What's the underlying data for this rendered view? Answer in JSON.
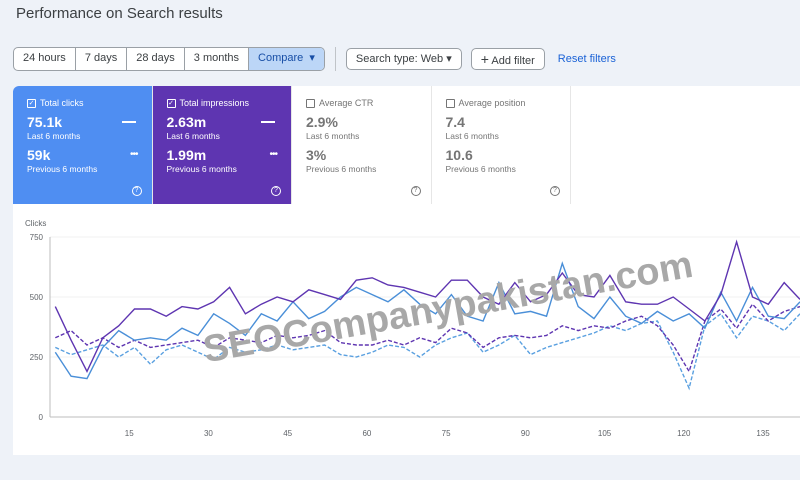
{
  "title": "Performance on Search results",
  "ranges": [
    "24 hours",
    "7 days",
    "28 days",
    "3 months",
    "Compare"
  ],
  "search_type": "Search type: Web",
  "add_filter": "Add filter",
  "reset": "Reset filters",
  "cards": [
    {
      "label": "Total clicks",
      "value": "75.1k",
      "period": "Last 6 months",
      "prev": "59k",
      "prev_period": "Previous 6 months",
      "checked": true
    },
    {
      "label": "Total impressions",
      "value": "2.63m",
      "period": "Last 6 months",
      "prev": "1.99m",
      "prev_period": "Previous 6 months",
      "checked": true
    },
    {
      "label": "Average CTR",
      "value": "2.9%",
      "period": "Last 6 months",
      "prev": "3%",
      "prev_period": "Previous 6 months",
      "checked": false
    },
    {
      "label": "Average position",
      "value": "7.4",
      "period": "Last 6 months",
      "prev": "10.6",
      "prev_period": "Previous 6 months",
      "checked": false
    }
  ],
  "watermark": "SEOCompanypakistan.com",
  "chart_data": {
    "type": "line",
    "ylabel": "Clicks",
    "ylim": [
      0,
      750
    ],
    "yticks": [
      0,
      250,
      500,
      750
    ],
    "xticks": [
      15,
      30,
      45,
      60,
      75,
      90,
      105,
      120,
      135
    ],
    "xlim": [
      0,
      142
    ],
    "x": [
      1,
      4,
      7,
      10,
      13,
      16,
      19,
      22,
      25,
      28,
      31,
      34,
      37,
      40,
      43,
      46,
      49,
      52,
      55,
      58,
      61,
      64,
      67,
      70,
      73,
      76,
      79,
      82,
      85,
      88,
      91,
      94,
      97,
      100,
      103,
      106,
      109,
      112,
      115,
      118,
      121,
      124,
      127,
      130,
      133,
      136,
      139,
      142
    ],
    "series": [
      {
        "name": "Total impressions (last 6 months)",
        "color": "#5e35b1",
        "dash": false,
        "values": [
          460,
          320,
          190,
          330,
          380,
          450,
          450,
          420,
          460,
          450,
          480,
          540,
          430,
          470,
          500,
          480,
          530,
          510,
          490,
          570,
          580,
          550,
          540,
          520,
          500,
          570,
          570,
          500,
          470,
          560,
          480,
          510,
          600,
          510,
          500,
          590,
          480,
          470,
          470,
          500,
          450,
          400,
          510,
          730,
          500,
          470,
          560,
          490
        ]
      },
      {
        "name": "Total clicks (last 6 months)",
        "color": "#4a8fd8",
        "dash": false,
        "values": [
          270,
          170,
          160,
          290,
          360,
          320,
          330,
          320,
          370,
          340,
          430,
          390,
          340,
          430,
          400,
          480,
          410,
          440,
          500,
          540,
          510,
          480,
          530,
          470,
          430,
          510,
          420,
          400,
          560,
          430,
          440,
          420,
          640,
          460,
          410,
          500,
          420,
          390,
          440,
          400,
          430,
          370,
          520,
          400,
          540,
          420,
          410,
          480
        ]
      },
      {
        "name": "Total impressions (previous 6 months)",
        "color": "#5e35b1",
        "dash": true,
        "values": [
          330,
          360,
          300,
          330,
          290,
          320,
          290,
          300,
          310,
          320,
          290,
          330,
          320,
          310,
          340,
          330,
          340,
          360,
          310,
          300,
          300,
          320,
          300,
          330,
          310,
          370,
          350,
          290,
          330,
          340,
          330,
          340,
          380,
          360,
          380,
          370,
          400,
          420,
          380,
          300,
          190,
          400,
          450,
          370,
          470,
          400,
          440,
          460
        ]
      },
      {
        "name": "Total clicks (previous 6 months)",
        "color": "#5aa0e0",
        "dash": true,
        "values": [
          290,
          260,
          280,
          300,
          250,
          290,
          220,
          280,
          300,
          270,
          240,
          290,
          270,
          280,
          300,
          280,
          290,
          300,
          260,
          250,
          270,
          300,
          290,
          250,
          300,
          330,
          350,
          270,
          300,
          340,
          260,
          290,
          310,
          330,
          350,
          380,
          360,
          390,
          400,
          270,
          120,
          380,
          430,
          330,
          420,
          400,
          360,
          430
        ]
      }
    ]
  }
}
